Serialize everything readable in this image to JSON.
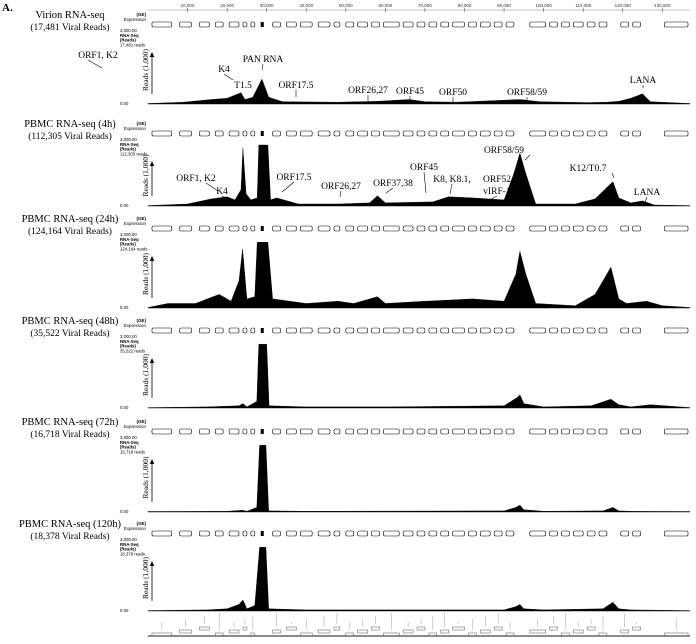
{
  "figure_label": "A.",
  "colors": {
    "track_fill": "#000000",
    "gene_outline": "#000000",
    "background": "#ffffff",
    "baseline": "#bbbbbb"
  },
  "chart_data": {
    "type": "area",
    "x_axis": {
      "ticks": [
        10000,
        20000,
        30000,
        40000,
        50000,
        60000,
        70000,
        80000,
        90000,
        100000,
        110000,
        120000,
        130000
      ],
      "tick_labels": [
        "10,000",
        "20,000",
        "30,000",
        "40,000",
        "50,000",
        "60,000",
        "70,000",
        "80,000",
        "90,000",
        "100,000",
        "110,000",
        "120,000",
        "130,000"
      ],
      "range": [
        0,
        137000
      ]
    },
    "gene_track": {
      "label_top": "(GE)",
      "label_bottom": "Expression"
    },
    "tracks": [
      {
        "title": "Virion RNA-seq",
        "subtitle": "(17,481 Viral Reads)",
        "header_lines": [
          "3,000.00",
          "RNA-Seq",
          "(Reads)",
          "17,481 reads"
        ],
        "axis_label": "Reads (1,000)",
        "ymin_label": "0.00",
        "annotations": [
          "ORF1, K2",
          "K4",
          "T1.5",
          "PAN RNA",
          "ORF17.5",
          "ORF26,27",
          "ORF45",
          "ORF50",
          "ORF58/59",
          "LANA"
        ],
        "x": [
          0,
          9000,
          16000,
          20000,
          23500,
          24500,
          26500,
          28800,
          30500,
          34000,
          48000,
          58000,
          66000,
          70000,
          78000,
          94000,
          99000,
          111000,
          116000,
          119000,
          122000,
          125000,
          127000,
          137000
        ],
        "y": [
          0.02,
          0.08,
          0.2,
          0.25,
          0.5,
          0.2,
          0.3,
          1.1,
          0.3,
          0.1,
          0.08,
          0.12,
          0.2,
          0.1,
          0.08,
          0.2,
          0.1,
          0.06,
          0.08,
          0.12,
          0.25,
          0.45,
          0.1,
          0.02
        ]
      },
      {
        "title": "PBMC RNA-seq (4h)",
        "subtitle": "(112,305 Viral Reads)",
        "header_lines": [
          "3,000.00",
          "RNA-Seq",
          "(Reads)",
          "112,305 reads"
        ],
        "axis_label": "Reads (1,000)",
        "ymin_label": "0.00",
        "annotations": [
          "ORF1, K2",
          "K4",
          "ORF17.5",
          "ORF26,27",
          "ORF37,38",
          "ORF45",
          "K8, K8.1,",
          "ORF52",
          "vIRF-1",
          "ORF58/59",
          "K12/T0.7",
          "LANA"
        ],
        "x": [
          0,
          10000,
          16000,
          20000,
          22000,
          23500,
          24000,
          24800,
          26000,
          27600,
          28000,
          30300,
          31000,
          32500,
          38000,
          48000,
          56000,
          58000,
          60000,
          72000,
          76000,
          82000,
          90000,
          92500,
          94000,
          95500,
          98000,
          108000,
          113000,
          117500,
          119000,
          122000,
          125000,
          128000,
          137000
        ],
        "y": [
          0.02,
          0.1,
          0.35,
          0.45,
          0.3,
          0.8,
          2.85,
          0.6,
          0.3,
          0.4,
          3.0,
          3.0,
          0.3,
          0.4,
          0.1,
          0.1,
          0.15,
          0.5,
          0.15,
          0.2,
          0.45,
          0.4,
          0.3,
          1.6,
          2.6,
          1.6,
          0.1,
          0.1,
          0.35,
          1.2,
          0.4,
          0.15,
          0.25,
          0.05,
          0.02
        ]
      },
      {
        "title": "PBMC RNA-seq (24h)",
        "subtitle": "(124,164 Viral Reads)",
        "header_lines": [
          "3,000.00",
          "RNA-Seq",
          "(Reads)",
          "124,164 reads"
        ],
        "axis_label": "Reads (1,000)",
        "ymin_label": "0.00",
        "annotations": [],
        "x": [
          0,
          5000,
          12000,
          15000,
          18000,
          21000,
          23000,
          23900,
          25000,
          27000,
          27600,
          30300,
          31500,
          40000,
          48000,
          52000,
          58000,
          60000,
          70000,
          76000,
          82000,
          90000,
          93000,
          94000,
          95500,
          98000,
          108000,
          113000,
          117000,
          119000,
          121000,
          126000,
          130000,
          137000
        ],
        "y": [
          0.02,
          0.2,
          0.2,
          0.4,
          0.6,
          0.3,
          1.2,
          2.6,
          0.4,
          0.5,
          2.9,
          2.9,
          0.4,
          0.2,
          0.3,
          0.2,
          0.5,
          0.2,
          0.3,
          0.35,
          0.4,
          0.3,
          1.5,
          2.5,
          1.5,
          0.2,
          0.1,
          0.6,
          1.8,
          0.4,
          0.2,
          0.3,
          0.1,
          0.02
        ]
      },
      {
        "title": "PBMC RNA-seq (48h)",
        "subtitle": "(35,522 Viral Reads)",
        "header_lines": [
          "3,000.00",
          "RNA-Seq",
          "(Reads)",
          "35,522 reads"
        ],
        "axis_label": "Reads (1,000)",
        "ymin_label": "0.00",
        "annotations": [],
        "x": [
          0,
          15000,
          23000,
          24000,
          25000,
          27500,
          28000,
          30000,
          30600,
          40000,
          60000,
          90000,
          93500,
          94000,
          95000,
          100000,
          112000,
          117000,
          119000,
          122000,
          127000,
          137000
        ],
        "y": [
          0.02,
          0.05,
          0.1,
          0.2,
          0.05,
          0.3,
          2.9,
          2.9,
          0.1,
          0.05,
          0.05,
          0.1,
          0.5,
          0.6,
          0.2,
          0.05,
          0.1,
          0.4,
          0.15,
          0.05,
          0.15,
          0.02
        ]
      },
      {
        "title": "PBMC RNA-seq (72h)",
        "subtitle": "(16,718 Viral Reads)",
        "header_lines": [
          "3,000.00",
          "RNA-Seq",
          "(Reads)",
          "16,718 reads"
        ],
        "axis_label": "Reads (1,000)",
        "ymin_label": "0.00",
        "annotations": [],
        "x": [
          0,
          20000,
          24000,
          25000,
          27500,
          28200,
          29800,
          30500,
          40000,
          90000,
          93000,
          94000,
          95000,
          100000,
          115000,
          117500,
          119000,
          122000,
          137000
        ],
        "y": [
          0.02,
          0.03,
          0.08,
          0.03,
          0.2,
          2.9,
          2.9,
          0.05,
          0.03,
          0.05,
          0.2,
          0.3,
          0.1,
          0.03,
          0.05,
          0.2,
          0.05,
          0.03,
          0.02
        ]
      },
      {
        "title": "PBMC RNA-seq (120h)",
        "subtitle": "(18,378 Viral Reads)",
        "header_lines": [
          "3,000.00",
          "RNA-Seq",
          "(Reads)",
          "18,378 reads"
        ],
        "axis_label": "Reads (1,000)",
        "ymin_label": "0.00",
        "annotations": [],
        "x": [
          0,
          15000,
          20000,
          23000,
          24000,
          25000,
          27000,
          28200,
          29800,
          30500,
          40000,
          90000,
          93000,
          94000,
          95000,
          100000,
          115000,
          117500,
          119000,
          122000,
          137000
        ],
        "y": [
          0.02,
          0.05,
          0.1,
          0.3,
          0.5,
          0.1,
          0.25,
          2.9,
          2.9,
          0.1,
          0.05,
          0.05,
          0.2,
          0.3,
          0.1,
          0.05,
          0.1,
          0.4,
          0.1,
          0.05,
          0.02
        ]
      }
    ]
  }
}
